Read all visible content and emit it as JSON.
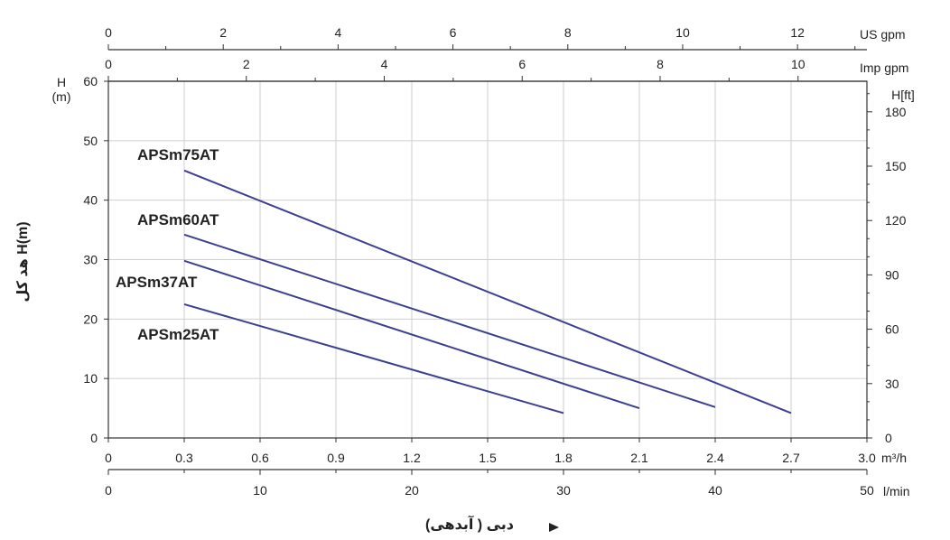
{
  "chart_data": {
    "type": "line",
    "x_unit": "m³/h",
    "x_ticks": [
      "0",
      "0.3",
      "0.6",
      "0.9",
      "1.2",
      "1.5",
      "1.8",
      "2.1",
      "2.4",
      "2.7",
      "3.0"
    ],
    "x_range": [
      0,
      3.0
    ],
    "y_left_label": "H",
    "y_left_unit": "(m)",
    "y_left_ticks": [
      "0",
      "10",
      "20",
      "30",
      "40",
      "50",
      "60"
    ],
    "y_range": [
      0,
      60
    ],
    "y_right_unit": "H[ft]",
    "y_right_ticks": [
      "0",
      "30",
      "60",
      "90",
      "120",
      "150",
      "180"
    ],
    "side_title": "هد کل  H(m)",
    "bottom_title": "دبی ( آبدهی)",
    "extra_axes": {
      "us_gpm": {
        "unit": "US gpm",
        "ticks": [
          "0",
          "2",
          "4",
          "6",
          "8",
          "10",
          "12"
        ]
      },
      "imp_gpm": {
        "unit": "Imp gpm",
        "ticks": [
          "0",
          "2",
          "4",
          "6",
          "8",
          "10"
        ]
      },
      "lmin": {
        "unit": "l/min",
        "ticks": [
          "0",
          "10",
          "20",
          "30",
          "40",
          "50"
        ]
      }
    },
    "grid": true,
    "series": [
      {
        "name": "APSm75AT",
        "x": [
          0.3,
          2.7
        ],
        "y": [
          45,
          4.2
        ]
      },
      {
        "name": "APSm60AT",
        "x": [
          0.3,
          2.4
        ],
        "y": [
          34.2,
          5.2
        ]
      },
      {
        "name": "APSm37AT",
        "x": [
          0.3,
          2.1
        ],
        "y": [
          29.8,
          5.0
        ]
      },
      {
        "name": "APSm25AT",
        "x": [
          0.3,
          1.8
        ],
        "y": [
          22.5,
          4.2
        ]
      }
    ],
    "colors": {
      "curve": "#3b3f8f",
      "grid": "#cfcfcf"
    }
  }
}
